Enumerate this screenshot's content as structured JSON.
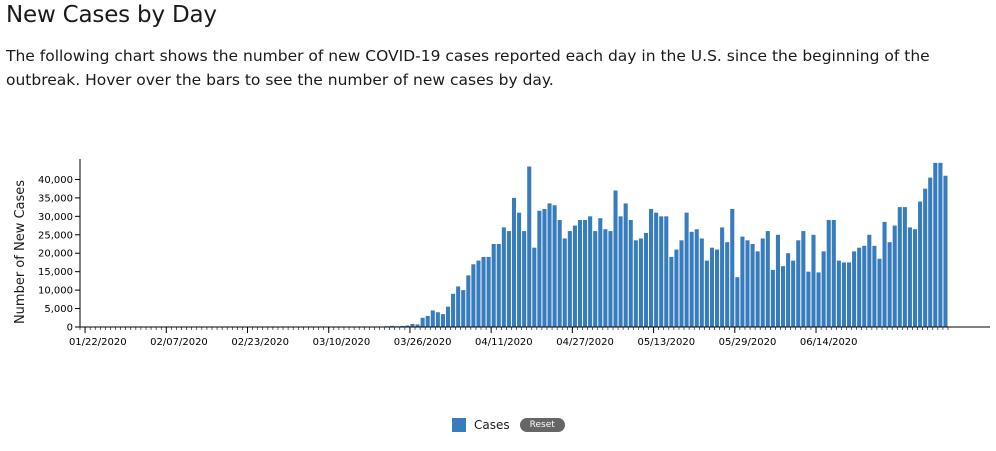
{
  "header": {
    "title": "New Cases by Day",
    "description": "The following chart shows the number of new COVID-19 cases reported each day in the U.S. since the beginning of the outbreak. Hover over the bars to see the number of new cases by day."
  },
  "legend": {
    "label": "Cases",
    "reset_label": "Reset",
    "color": "#377dbd"
  },
  "chart_data": {
    "type": "bar",
    "title": "New Cases by Day",
    "xlabel": "",
    "ylabel": "Number of New Cases",
    "ylim": [
      0,
      45000
    ],
    "yticks": [
      0,
      5000,
      10000,
      15000,
      20000,
      25000,
      30000,
      35000,
      40000
    ],
    "ytick_labels": [
      "0",
      "5,000",
      "10,000",
      "15,000",
      "20,000",
      "25,000",
      "30,000",
      "35,000",
      "40,000"
    ],
    "xtick_labels": [
      "01/22/2020",
      "02/07/2020",
      "02/23/2020",
      "03/10/2020",
      "03/26/2020",
      "04/11/2020",
      "04/27/2020",
      "05/13/2020",
      "05/29/2020",
      "06/14/2020"
    ],
    "xtick_every": 16,
    "grid": false,
    "legend_position": "bottom-center",
    "bar_color": "#377dbd",
    "start_date": "01/22/2020",
    "series": [
      {
        "name": "Cases",
        "values": [
          0,
          0,
          0,
          0,
          0,
          0,
          0,
          0,
          0,
          0,
          0,
          0,
          0,
          0,
          0,
          0,
          0,
          0,
          0,
          0,
          0,
          0,
          0,
          0,
          0,
          0,
          0,
          0,
          0,
          0,
          0,
          0,
          0,
          0,
          0,
          0,
          0,
          0,
          0,
          0,
          0,
          0,
          0,
          0,
          0,
          0,
          0,
          0,
          0,
          0,
          0,
          0,
          0,
          0,
          0,
          0,
          50,
          50,
          100,
          100,
          200,
          300,
          200,
          300,
          400,
          800,
          700,
          2500,
          3000,
          4500,
          4000,
          3500,
          5500,
          9000,
          11000,
          10000,
          14000,
          17000,
          18000,
          19000,
          19000,
          22500,
          22500,
          27000,
          26000,
          35000,
          31000,
          26000,
          43500,
          21500,
          31500,
          32000,
          33500,
          33000,
          29000,
          24000,
          26000,
          27500,
          29000,
          29000,
          30000,
          26000,
          29500,
          26500,
          26000,
          37000,
          30000,
          33500,
          29000,
          23500,
          24000,
          25500,
          32000,
          31000,
          30000,
          30000,
          19000,
          21000,
          23500,
          31000,
          25800,
          26500,
          24000,
          18000,
          21500,
          21000,
          27000,
          23000,
          32000,
          13500,
          24500,
          23500,
          22500,
          20500,
          24000,
          26000,
          15500,
          25000,
          16500,
          20000,
          18000,
          23500,
          26000,
          15000,
          25000,
          14800,
          20500,
          29000,
          29000,
          18000,
          17500,
          17500,
          20500,
          21500,
          22000,
          25000,
          22000,
          18500,
          28500,
          23000,
          27500,
          32500,
          32500,
          27000,
          26500,
          34000,
          37500,
          40500,
          44500,
          44500,
          41000
        ]
      }
    ]
  }
}
